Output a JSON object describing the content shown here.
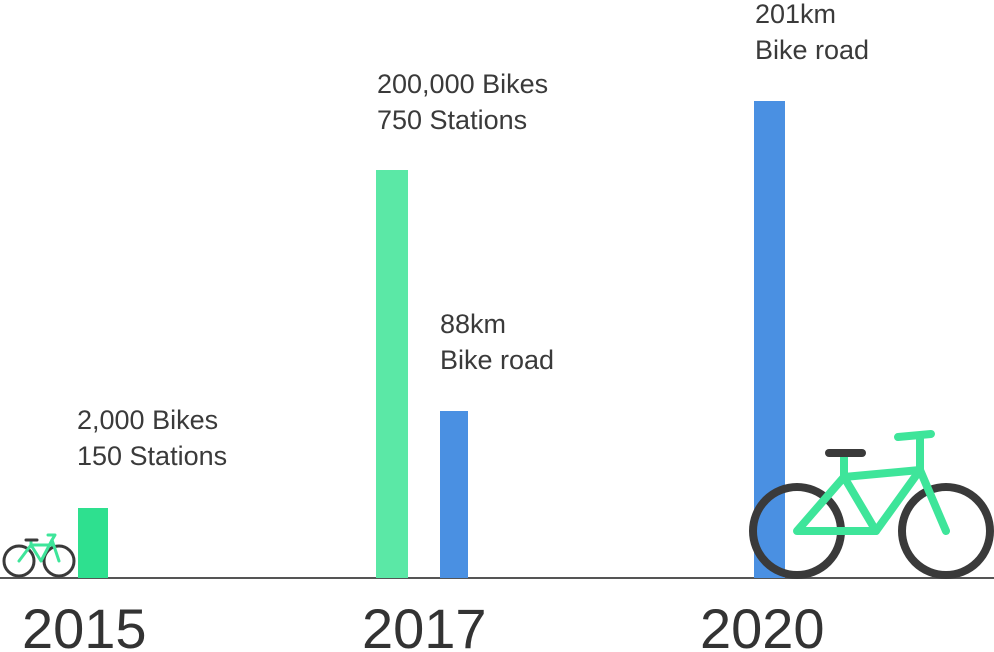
{
  "colors": {
    "bikes": "#5be8a6",
    "bikes_2015": "#2ee08f",
    "road": "#4a90e2",
    "axis": "#555555",
    "bike_frame": "#3ee59a",
    "bike_wheel": "#3a3a3a"
  },
  "chart_data": {
    "type": "bar",
    "categories": [
      "2015",
      "2017",
      "2020"
    ],
    "bars": [
      {
        "year": "2015",
        "kind": "bikes",
        "value": 2000,
        "label_lines": [
          "2,000 Bikes",
          "150 Stations"
        ]
      },
      {
        "year": "2017",
        "kind": "bikes",
        "value": 200000,
        "label_lines": [
          "200,000 Bikes",
          "750 Stations"
        ]
      },
      {
        "year": "2017",
        "kind": "road",
        "value": 88,
        "label_lines": [
          "88km",
          "Bike road"
        ]
      },
      {
        "year": "2020",
        "kind": "road",
        "value": 201,
        "label_lines": [
          "201km",
          "Bike road"
        ]
      }
    ],
    "title": "",
    "xlabel": "",
    "ylabel": "",
    "grid": false,
    "legend": "none"
  },
  "icons": [
    "small-bicycle-icon",
    "large-bicycle-icon"
  ]
}
